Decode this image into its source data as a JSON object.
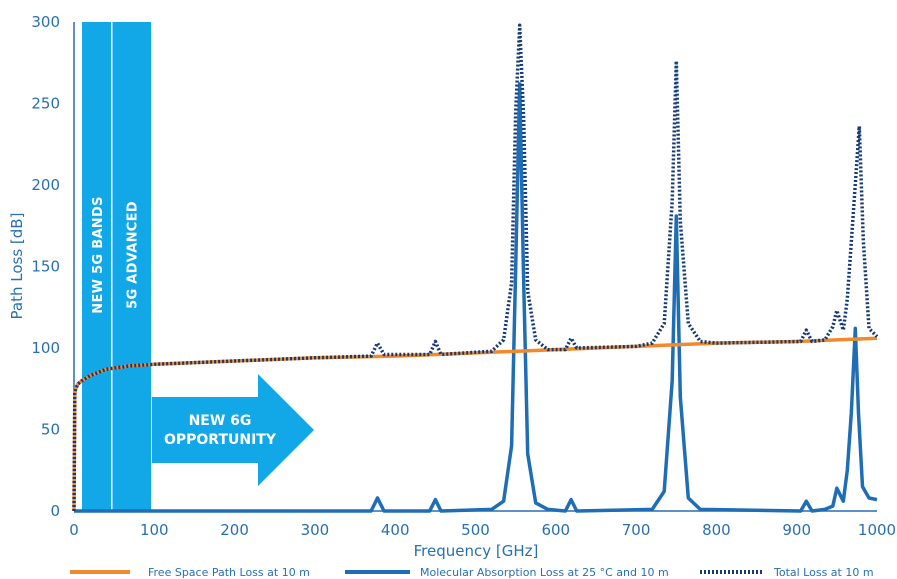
{
  "chart_data": {
    "type": "line",
    "title": "",
    "xlabel": "Frequency [GHz]",
    "ylabel": "Path Loss [dB]",
    "xlim": [
      0,
      1000
    ],
    "ylim": [
      0,
      300
    ],
    "x_ticks": [
      0,
      100,
      200,
      300,
      400,
      500,
      600,
      700,
      800,
      900,
      1000
    ],
    "y_ticks": [
      0,
      50,
      100,
      150,
      200,
      250,
      300
    ],
    "grid": false,
    "legend_position": "bottom",
    "colors": {
      "axis": "#2a6fb0",
      "free_space": "#f08a2c",
      "molecular": "#1f6db5",
      "total": "#163a78",
      "band": "#12a8e8"
    },
    "bands": [
      {
        "label": "NEW 5G BANDS",
        "x_start": 10,
        "x_end": 47
      },
      {
        "label": "5G ADVANCED",
        "x_start": 47,
        "x_end": 96
      }
    ],
    "annotation": {
      "lines": [
        "NEW 6G",
        "OPPORTUNITY"
      ]
    },
    "series": [
      {
        "name": "Free Space Path Loss at 10 m",
        "style": "solid",
        "x": [
          0,
          1,
          2,
          5,
          10,
          20,
          40,
          70,
          100,
          200,
          300,
          400,
          500,
          600,
          700,
          800,
          900,
          1000
        ],
        "y": [
          0,
          72,
          75,
          78,
          80,
          83,
          87,
          89,
          90,
          92,
          94,
          95,
          97,
          99,
          101,
          103,
          104,
          106
        ]
      },
      {
        "name": "Molecular Absorption Loss at 25 °C and 10 m",
        "style": "solid",
        "x": [
          0,
          370,
          378,
          386,
          443,
          450,
          457,
          520,
          535,
          545,
          550,
          555,
          560,
          565,
          575,
          590,
          612,
          619,
          626,
          720,
          735,
          745,
          750,
          755,
          765,
          780,
          905,
          912,
          919,
          935,
          945,
          950,
          958,
          963,
          968,
          973,
          977,
          982,
          990,
          1000
        ],
        "y": [
          0,
          0,
          8,
          0,
          0,
          7,
          0,
          1,
          6,
          40,
          150,
          262,
          140,
          35,
          5,
          1,
          0,
          7,
          0,
          1,
          12,
          80,
          181,
          70,
          8,
          1,
          0,
          6,
          0,
          1,
          3,
          14,
          6,
          25,
          60,
          112,
          60,
          15,
          8,
          7
        ]
      },
      {
        "name": "Total Loss at 10 m",
        "style": "dotted",
        "x": [
          0,
          1,
          2,
          5,
          10,
          20,
          40,
          70,
          100,
          200,
          300,
          370,
          378,
          386,
          443,
          450,
          457,
          520,
          535,
          545,
          550,
          555,
          560,
          565,
          575,
          590,
          612,
          619,
          626,
          700,
          720,
          735,
          745,
          750,
          755,
          765,
          780,
          800,
          905,
          912,
          919,
          935,
          945,
          950,
          958,
          963,
          968,
          978,
          983,
          990,
          1000
        ],
        "y": [
          0,
          72,
          75,
          78,
          80,
          83,
          87,
          89,
          90,
          92,
          94,
          95,
          103,
          96,
          96,
          104,
          96,
          98,
          105,
          140,
          245,
          298,
          240,
          135,
          105,
          99,
          99,
          106,
          100,
          101,
          103,
          115,
          190,
          276,
          178,
          115,
          104,
          103,
          104,
          111,
          104,
          105,
          113,
          123,
          111,
          130,
          165,
          236,
          166,
          112,
          107
        ]
      }
    ]
  }
}
